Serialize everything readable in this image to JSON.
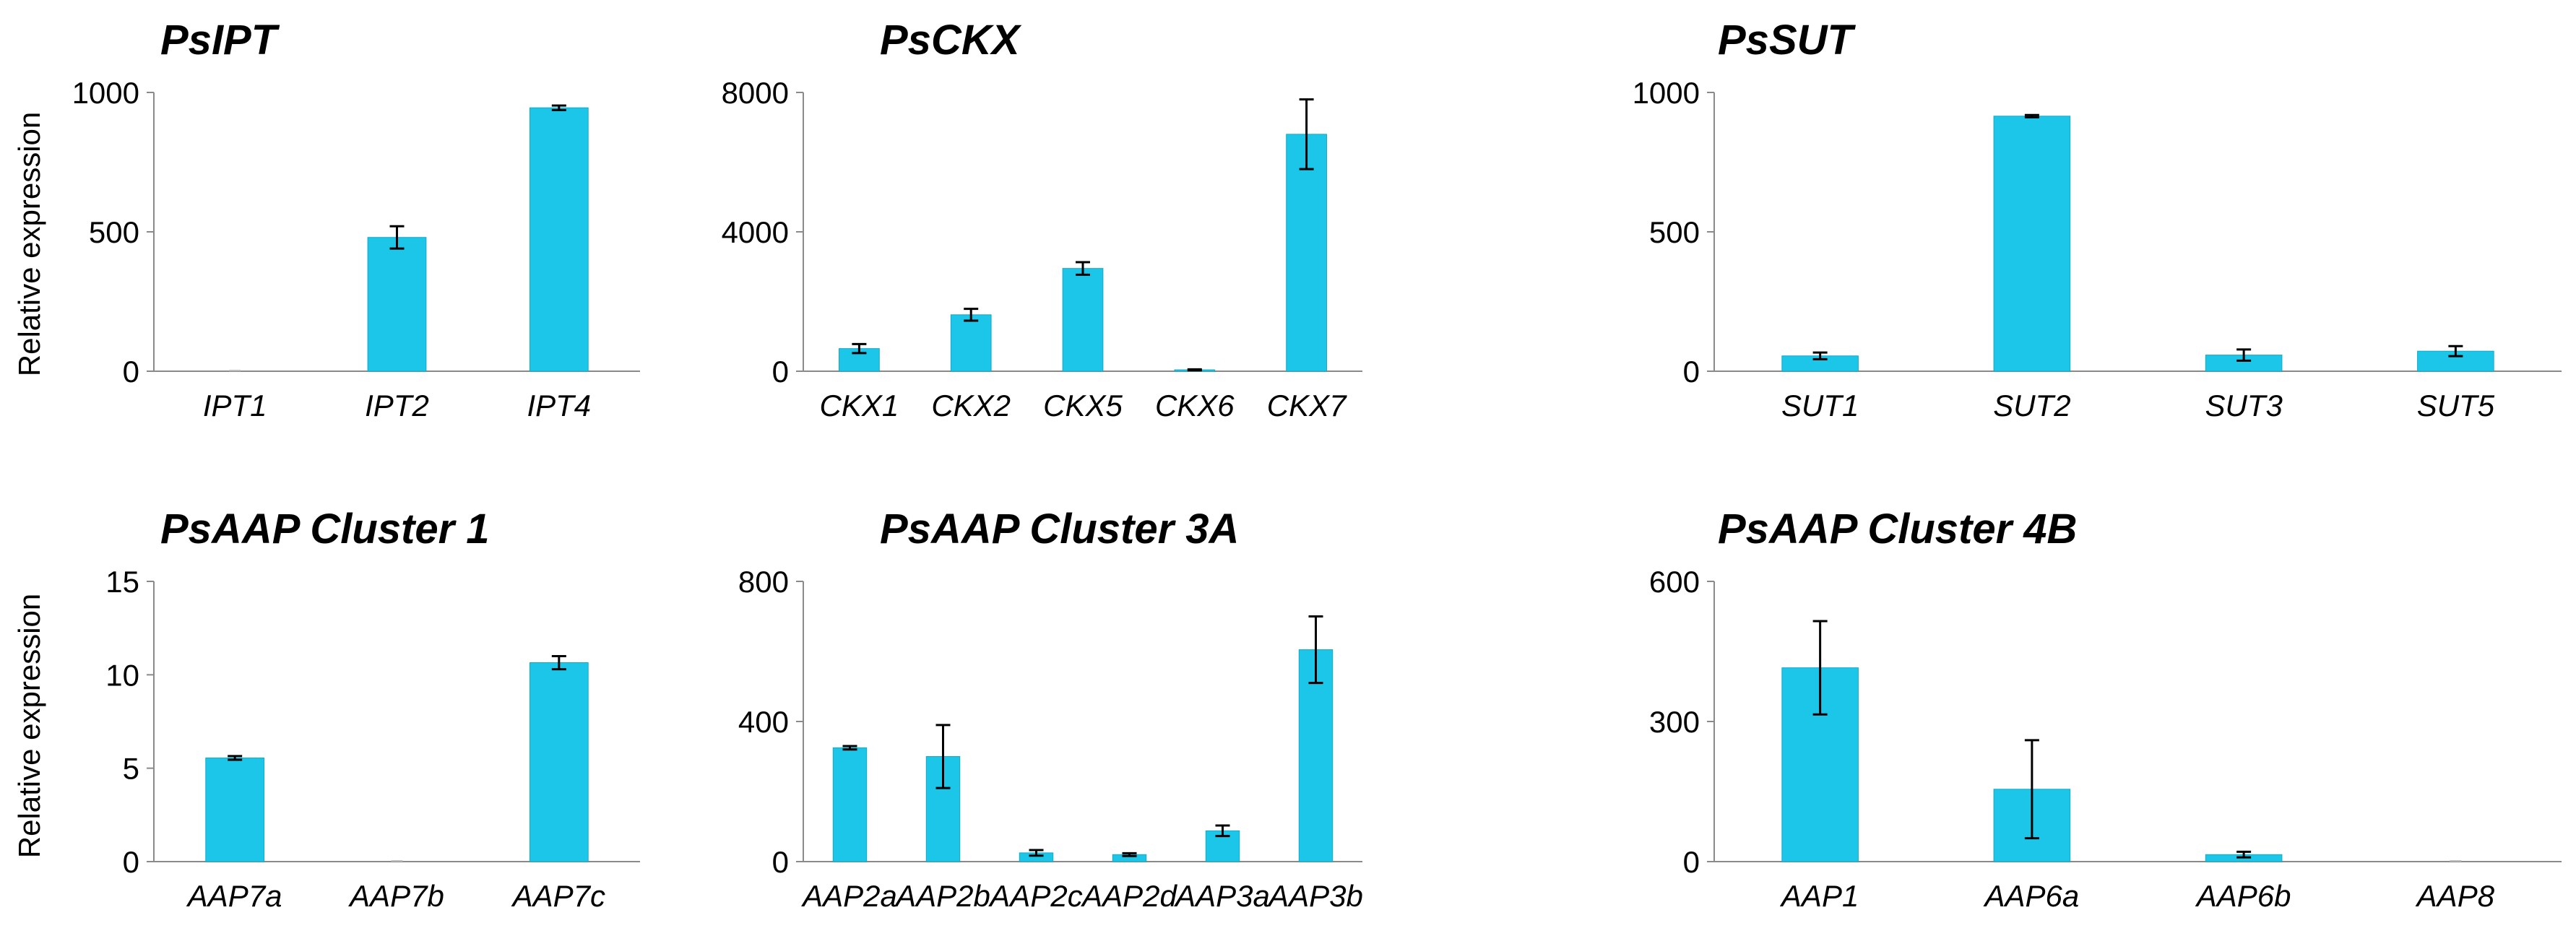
{
  "colors": {
    "bar": "#1cc6e8",
    "bar_edge": "#14a9c8",
    "axis": "#8a8a8a"
  },
  "chart_data": [
    {
      "type": "bar",
      "title": "PsIPT",
      "ylabel": "Relative expression",
      "ylim": [
        0,
        1000
      ],
      "yticks": [
        0,
        500,
        1000
      ],
      "categories": [
        "IPT1",
        "IPT2",
        "IPT4"
      ],
      "values": [
        0,
        480,
        945
      ],
      "errors": [
        0,
        40,
        8
      ]
    },
    {
      "type": "bar",
      "title": "PsCKX",
      "ylabel": "",
      "ylim": [
        0,
        8000
      ],
      "yticks": [
        0,
        4000,
        8000
      ],
      "categories": [
        "CKX1",
        "CKX2",
        "CKX5",
        "CKX6",
        "CKX7"
      ],
      "values": [
        650,
        1620,
        2950,
        40,
        6800
      ],
      "errors": [
        130,
        170,
        180,
        15,
        1000
      ]
    },
    {
      "type": "bar",
      "title": "PsSUT",
      "ylabel": "",
      "ylim": [
        0,
        1000
      ],
      "yticks": [
        0,
        500,
        1000
      ],
      "categories": [
        "SUT1",
        "SUT2",
        "SUT3",
        "SUT5"
      ],
      "values": [
        55,
        915,
        58,
        72
      ],
      "errors": [
        12,
        4,
        20,
        18
      ]
    },
    {
      "type": "bar",
      "title": "PsAAP Cluster 1",
      "ylabel": "Relative expression",
      "ylim": [
        0,
        15
      ],
      "yticks": [
        0,
        5,
        10,
        15
      ],
      "categories": [
        "AAP7a",
        "AAP7b",
        "AAP7c"
      ],
      "values": [
        5.55,
        0,
        10.65
      ],
      "errors": [
        0.1,
        0,
        0.35
      ]
    },
    {
      "type": "bar",
      "title": "PsAAP Cluster 3A",
      "ylabel": "",
      "ylim": [
        0,
        800
      ],
      "yticks": [
        0,
        400,
        800
      ],
      "categories": [
        "AAP2a",
        "AAP2b",
        "AAP2c",
        "AAP2d",
        "AAP3a",
        "AAP3b"
      ],
      "values": [
        325,
        300,
        25,
        20,
        88,
        605
      ],
      "errors": [
        5,
        90,
        8,
        4,
        15,
        95
      ]
    },
    {
      "type": "bar",
      "title": "PsAAP Cluster 4B",
      "ylabel": "",
      "ylim": [
        0,
        600
      ],
      "yticks": [
        0,
        300,
        600
      ],
      "categories": [
        "AAP1",
        "AAP6a",
        "AAP6b",
        "AAP8"
      ],
      "values": [
        415,
        155,
        15,
        0
      ],
      "errors": [
        100,
        105,
        6,
        0
      ]
    }
  ]
}
